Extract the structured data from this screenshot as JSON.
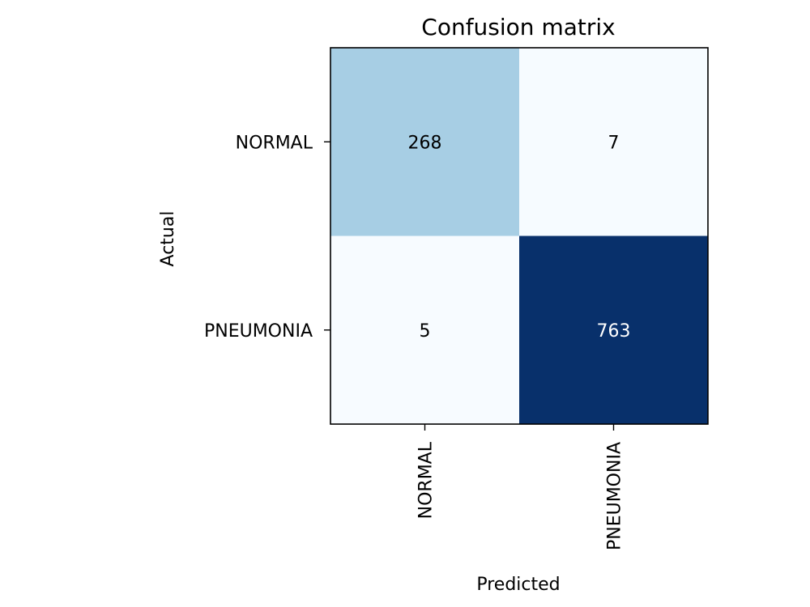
{
  "chart_data": {
    "type": "heatmap",
    "title": "Confusion matrix",
    "xlabel": "Predicted",
    "ylabel": "Actual",
    "x_categories": [
      "NORMAL",
      "PNEUMONIA"
    ],
    "y_categories": [
      "NORMAL",
      "PNEUMONIA"
    ],
    "values": [
      [
        268,
        7
      ],
      [
        5,
        763
      ]
    ],
    "value_range": [
      5,
      763
    ],
    "colormap": "Blues",
    "colors": {
      "low": "#f7fbff",
      "mid": "#a9cfe5",
      "high": "#08306b",
      "text_on_light": "#000000",
      "text_on_dark": "#ffffff"
    },
    "grid": false,
    "legend": "none"
  }
}
